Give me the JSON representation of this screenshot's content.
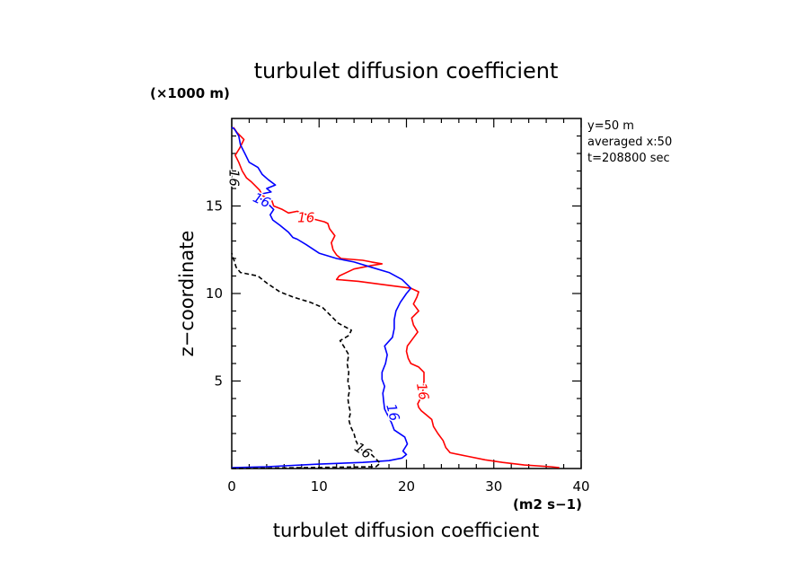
{
  "chart_data": {
    "type": "line",
    "title": "turbulet diffusion coefficient",
    "xlabel": "turbulet diffusion coefficient",
    "x_unit": "(m2 s−1)",
    "ylabel": "z−coordinate",
    "y_unit": "(×1000 m)",
    "xlim": [
      0,
      40
    ],
    "ylim": [
      0,
      20
    ],
    "x_ticks": [
      "0",
      "10",
      "20",
      "30",
      "40"
    ],
    "y_ticks": [
      "5",
      "10",
      "15"
    ],
    "info_lines": [
      "y=50 m",
      "averaged  x:50",
      "t=208800 sec"
    ],
    "series": [
      {
        "color": "#ff0000",
        "dash": "solid",
        "label": "16",
        "points": [
          [
            37.5,
            0.05
          ],
          [
            36.5,
            0.1
          ],
          [
            33.5,
            0.2
          ],
          [
            31,
            0.35
          ],
          [
            29,
            0.5
          ],
          [
            27,
            0.7
          ],
          [
            25,
            0.9
          ],
          [
            24.5,
            1.2
          ],
          [
            24.2,
            1.6
          ],
          [
            23.6,
            2
          ],
          [
            23.1,
            2.4
          ],
          [
            22.9,
            2.8
          ],
          [
            22.2,
            3.1
          ],
          [
            21.7,
            3.3
          ],
          [
            21.4,
            3.5
          ],
          [
            21.3,
            3.7
          ],
          [
            21.6,
            4.0
          ],
          [
            21.9,
            4.5
          ],
          [
            22.0,
            5.0
          ],
          [
            22.0,
            5.5
          ],
          [
            21.4,
            5.8
          ],
          [
            20.5,
            6.0
          ],
          [
            20.2,
            6.3
          ],
          [
            20.0,
            6.7
          ],
          [
            20.1,
            7.0
          ],
          [
            20.7,
            7.4
          ],
          [
            21.3,
            7.8
          ],
          [
            20.8,
            8.2
          ],
          [
            20.6,
            8.6
          ],
          [
            21.4,
            9.0
          ],
          [
            20.8,
            9.4
          ],
          [
            21.2,
            9.8
          ],
          [
            21.4,
            10.1
          ],
          [
            20.5,
            10.3
          ],
          [
            19.0,
            10.4
          ],
          [
            17.5,
            10.5
          ],
          [
            14.5,
            10.7
          ],
          [
            12.0,
            10.8
          ],
          [
            12.3,
            11.0
          ],
          [
            14.0,
            11.4
          ],
          [
            16.0,
            11.6
          ],
          [
            17.2,
            11.7
          ],
          [
            16.0,
            11.8
          ],
          [
            15.0,
            11.9
          ],
          [
            12.5,
            12.0
          ],
          [
            12.0,
            12.2
          ],
          [
            11.6,
            12.5
          ],
          [
            11.4,
            12.9
          ],
          [
            11.8,
            13.3
          ],
          [
            11.2,
            13.7
          ],
          [
            11.0,
            14.0
          ],
          [
            10.6,
            14.1
          ],
          [
            9.0,
            14.3
          ],
          [
            8.6,
            14.5
          ],
          [
            7.5,
            14.7
          ],
          [
            6.5,
            14.6
          ],
          [
            5.8,
            14.8
          ],
          [
            4.8,
            15.0
          ],
          [
            4.6,
            15.3
          ],
          [
            3.5,
            15.6
          ],
          [
            3.2,
            15.9
          ],
          [
            2.6,
            16.2
          ],
          [
            2.2,
            16.4
          ],
          [
            1.7,
            16.6
          ],
          [
            1.2,
            17.0
          ],
          [
            0.8,
            17.5
          ],
          [
            0.4,
            17.9
          ],
          [
            0.9,
            18.3
          ],
          [
            1.4,
            18.8
          ],
          [
            0.6,
            19.2
          ],
          [
            0.2,
            19.5
          ]
        ]
      },
      {
        "color": "#0000ff",
        "dash": "solid",
        "label": "16",
        "points": [
          [
            0,
            0.05
          ],
          [
            4,
            0.1
          ],
          [
            10,
            0.25
          ],
          [
            15,
            0.35
          ],
          [
            18,
            0.45
          ],
          [
            19.5,
            0.6
          ],
          [
            20.0,
            0.8
          ],
          [
            19.6,
            1.0
          ],
          [
            20.1,
            1.4
          ],
          [
            19.8,
            1.8
          ],
          [
            18.6,
            2.2
          ],
          [
            18.3,
            2.6
          ],
          [
            17.9,
            3.0
          ],
          [
            17.5,
            3.4
          ],
          [
            17.4,
            3.8
          ],
          [
            17.3,
            4.3
          ],
          [
            17.5,
            4.7
          ],
          [
            17.2,
            5.1
          ],
          [
            17.2,
            5.5
          ],
          [
            17.6,
            6.0
          ],
          [
            17.8,
            6.5
          ],
          [
            17.5,
            7.0
          ],
          [
            18.4,
            7.5
          ],
          [
            18.6,
            8.0
          ],
          [
            18.6,
            8.5
          ],
          [
            18.8,
            9.0
          ],
          [
            19.3,
            9.5
          ],
          [
            20.0,
            10.0
          ],
          [
            20.5,
            10.3
          ],
          [
            19.5,
            10.8
          ],
          [
            18.0,
            11.2
          ],
          [
            16.0,
            11.5
          ],
          [
            14.0,
            11.8
          ],
          [
            12.0,
            12.0
          ],
          [
            10.0,
            12.3
          ],
          [
            8.5,
            12.8
          ],
          [
            7.5,
            13.1
          ],
          [
            7.0,
            13.2
          ],
          [
            6.5,
            13.5
          ],
          [
            6.0,
            13.7
          ],
          [
            5.5,
            13.9
          ],
          [
            4.7,
            14.2
          ],
          [
            4.4,
            14.5
          ],
          [
            4.8,
            14.8
          ],
          [
            4.0,
            15.2
          ],
          [
            3.0,
            15.5
          ],
          [
            3.5,
            15.7
          ],
          [
            4.5,
            15.8
          ],
          [
            4.0,
            16.0
          ],
          [
            5.0,
            16.2
          ],
          [
            4.2,
            16.5
          ],
          [
            3.5,
            16.8
          ],
          [
            3.0,
            17.2
          ],
          [
            2.0,
            17.5
          ],
          [
            1.5,
            18.0
          ],
          [
            1.0,
            18.5
          ],
          [
            0.8,
            19.0
          ],
          [
            0.3,
            19.4
          ],
          [
            0,
            19.5
          ]
        ]
      },
      {
        "color": "#000000",
        "dash": "dashed",
        "label": "16",
        "points": [
          [
            0,
            0
          ],
          [
            16.5,
            0.1
          ],
          [
            17.0,
            0.3
          ],
          [
            16.0,
            0.8
          ],
          [
            15.0,
            1.0
          ],
          [
            14.5,
            1.3
          ],
          [
            14.2,
            1.6
          ],
          [
            14.0,
            2.0
          ],
          [
            13.6,
            2.4
          ],
          [
            13.4,
            2.8
          ],
          [
            13.6,
            3.2
          ],
          [
            13.4,
            3.6
          ],
          [
            13.3,
            4.0
          ],
          [
            13.5,
            4.5
          ],
          [
            13.3,
            5.0
          ],
          [
            13.4,
            5.5
          ],
          [
            13.2,
            6.0
          ],
          [
            13.4,
            6.5
          ],
          [
            12.8,
            7.0
          ],
          [
            12.4,
            7.3
          ],
          [
            13.4,
            7.6
          ],
          [
            13.7,
            7.9
          ],
          [
            12.2,
            8.3
          ],
          [
            11.4,
            8.7
          ],
          [
            10.4,
            9.2
          ],
          [
            9.0,
            9.5
          ],
          [
            7.0,
            9.8
          ],
          [
            5.5,
            10.1
          ],
          [
            4.0,
            10.6
          ],
          [
            3.0,
            11.0
          ],
          [
            1.0,
            11.2
          ],
          [
            0.5,
            11.5
          ],
          [
            0.2,
            12.0
          ],
          [
            0,
            12.3
          ]
        ]
      }
    ],
    "contour_labels": [
      {
        "text": "16",
        "color": "#ff0000",
        "x": 21.8,
        "y": 4.4,
        "rot": 80
      },
      {
        "text": "16",
        "color": "#ff0000",
        "x": 8.5,
        "y": 14.3,
        "rot": 0
      },
      {
        "text": "16",
        "color": "#0000ff",
        "x": 18.4,
        "y": 3.2,
        "rot": 75
      },
      {
        "text": "16",
        "color": "#0000ff",
        "x": 3.4,
        "y": 15.3,
        "rot": 25
      },
      {
        "text": "16",
        "color": "#000000",
        "x": 15.0,
        "y": 1.0,
        "rot": 35
      },
      {
        "text": "16",
        "color": "#000000",
        "x": 0.2,
        "y": 16.6,
        "rot": 90
      }
    ]
  }
}
